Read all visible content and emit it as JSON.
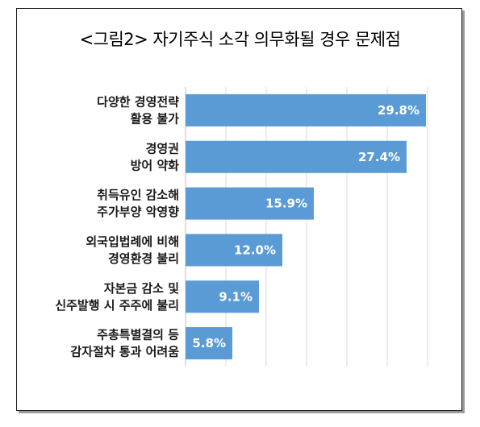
{
  "chart_data": {
    "type": "bar",
    "orientation": "horizontal",
    "title": "<그림2> 자기주식 소각 의무화될 경우 문제점",
    "categories": [
      [
        "다양한 경영전략",
        "활용 불가"
      ],
      [
        "경영권",
        "방어 약화"
      ],
      [
        "취득유인 감소해",
        "주가부양 악영향"
      ],
      [
        "외국입법례에 비해",
        "경영환경 불리"
      ],
      [
        "자본금 감소 및",
        "신주발행 시 주주에 불리"
      ],
      [
        "주총특별결의 등",
        "감자절차 통과 어려움"
      ]
    ],
    "values": [
      29.8,
      27.4,
      15.9,
      12.0,
      9.1,
      5.8
    ],
    "value_labels": [
      "29.8%",
      "27.4%",
      "15.9%",
      "12.0%",
      "9.1%",
      "5.8%"
    ],
    "xlim": [
      0,
      30
    ],
    "grid": true,
    "legend": "none",
    "bar_color": "#5b9bd5",
    "grid_color": "#d9d9d9"
  }
}
